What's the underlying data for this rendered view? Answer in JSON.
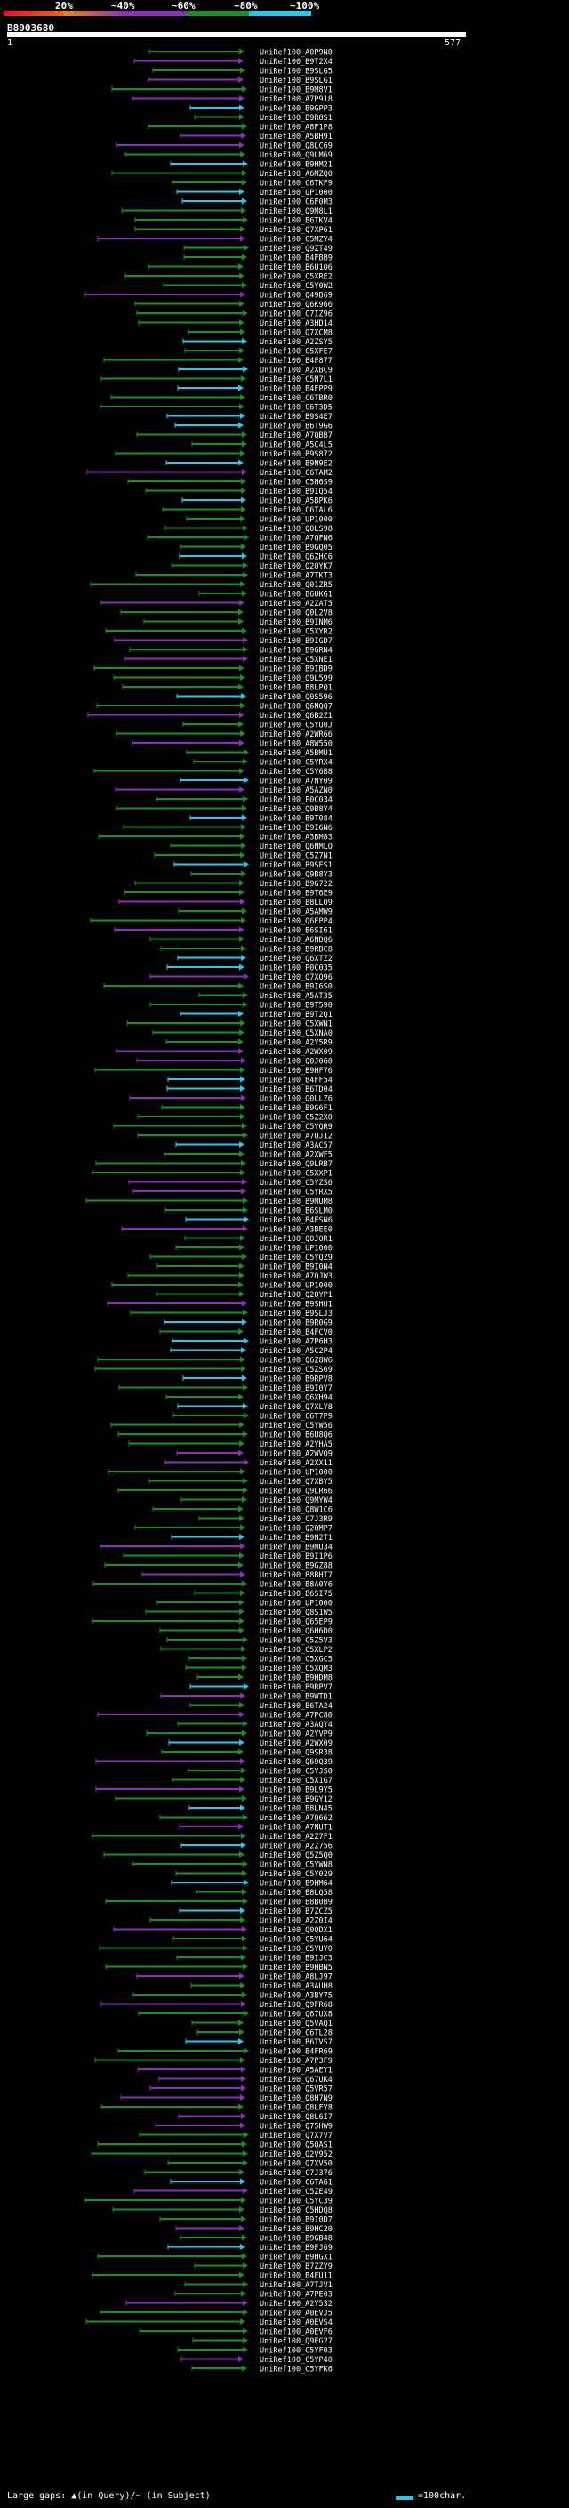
{
  "legend": {
    "percent_labels": [
      "20%",
      "~40%",
      "~60%",
      "~80%",
      "~100%"
    ],
    "colors": [
      "#e8102a",
      "#8b2fb8",
      "#1a8f22",
      "#27c8e8"
    ]
  },
  "query": {
    "id": "B8903680",
    "start": "1",
    "end": "577"
  },
  "hits": [
    "UniRef100_A0P9N0",
    "UniRef100_B9T2X4",
    "UniRef100_B9SLG5",
    "UniRef100_B9SLG1",
    "UniRef100_B9M8V1",
    "UniRef100_A7P918",
    "UniRef100_B9GPP3",
    "UniRef100_B9R8S1",
    "UniRef100_A8F1P8",
    "UniRef100_A5BH91",
    "UniRef100_Q8LC69",
    "UniRef100_Q9LM69",
    "UniRef100_B9HM21",
    "UniRef100_A6MZQ0",
    "UniRef100_C6TKF9",
    "UniRef100_UP1000",
    "UniRef100_C6F0M3",
    "UniRef100_Q9M8L1",
    "UniRef100_B6TKV4",
    "UniRef100_Q7XP61",
    "UniRef100_C5MZY4",
    "UniRef100_Q9ZT49",
    "UniRef100_B4FBB9",
    "UniRef100_B6U1Q6",
    "UniRef100_C5XRE2",
    "UniRef100_C5Y0W2",
    "UniRef100_Q49B69",
    "UniRef100_Q6K966",
    "UniRef100_C7IZ96",
    "UniRef100_A3HD14",
    "UniRef100_Q7XCM8",
    "UniRef100_A2ZSY5",
    "UniRef100_C5XFE7",
    "UniRef100_B4F877",
    "UniRef100_A2XBC9",
    "UniRef100_C5N7L1",
    "UniRef100_B4FPP9",
    "UniRef100_C6TBR0",
    "UniRef100_C6T3D5",
    "UniRef100_B9S4E7",
    "UniRef100_B6T9G6",
    "UniRef100_A7QBB7",
    "UniRef100_A5C4L5",
    "UniRef100_B9S872",
    "UniRef100_B9N9E2",
    "UniRef100_C6TAM2",
    "UniRef100_C5N6S9",
    "UniRef100_B9IQ54",
    "UniRef100_A5BPK6",
    "UniRef100_C6TAL6",
    "UniRef100_UP1000",
    "UniRef100_Q0LS98",
    "UniRef100_A7QFN6",
    "UniRef100_B9GQ05",
    "UniRef100_Q6ZHC6",
    "UniRef100_Q2QYK7",
    "UniRef100_A7TKT3",
    "UniRef100_Q01ZR5",
    "UniRef100_B6UKG1",
    "UniRef100_A2ZAT5",
    "UniRef100_Q0L2V8",
    "UniRef100_B9INM6",
    "UniRef100_C5XYR2",
    "UniRef100_B9IGD7",
    "UniRef100_B9GRN4",
    "UniRef100_C5XNE1",
    "UniRef100_B9IBD9",
    "UniRef100_Q9L599",
    "UniRef100_B8LPQ1",
    "UniRef100_Q0S596",
    "UniRef100_Q6NQQ7",
    "UniRef100_Q6B2Z1",
    "UniRef100_C5YU0J",
    "UniRef100_A2WR66",
    "UniRef100_A8W550",
    "UniRef100_A5BMU1",
    "UniRef100_C5YRX4",
    "UniRef100_C5Y6B8",
    "UniRef100_A7NY09",
    "UniRef100_A5AZN0",
    "UniRef100_P0C034",
    "UniRef100_Q9B8Y4",
    "UniRef100_B9T084",
    "UniRef100_B9I6N6",
    "UniRef100_A3BM83",
    "UniRef100_Q6NMLO",
    "UniRef100_C5Z7N1",
    "UniRef100_B9SES1",
    "UniRef100_Q9B8Y3",
    "UniRef100_B9G722",
    "UniRef100_B9T6E9",
    "UniRef100_B8LLO9",
    "UniRef100_A5AMW9",
    "UniRef100_Q6EPP4",
    "UniRef100_B6SI61",
    "UniRef100_A6NDQ6",
    "UniRef100_B9RBC8",
    "UniRef100_Q6XTZ2",
    "UniRef100_P0C035",
    "UniRef100_Q7XQ96",
    "UniRef100_B9I6S0",
    "UniRef100_A5AT35",
    "UniRef100_B9T590",
    "UniRef100_B9T2Q1",
    "UniRef100_C5XWN1",
    "UniRef100_C5XNA0",
    "UniRef100_A2Y5R9",
    "UniRef100_A2WX09",
    "UniRef100_Q0J0G0",
    "UniRef100_B9HF76",
    "UniRef100_B4FF54",
    "UniRef100_B6TD04",
    "UniRef100_Q0LLZ6",
    "UniRef100_B9G6F1",
    "UniRef100_C5Z2X0",
    "UniRef100_C5YQR9",
    "UniRef100_A7QJ12",
    "UniRef100_A3AC57",
    "UniRef100_A2XWF5",
    "UniRef100_Q9LRB7",
    "UniRef100_C5XXP1",
    "UniRef100_C5YZS6",
    "UniRef100_C5YRX5",
    "UniRef100_B9MUM8",
    "UniRef100_B6SLM0",
    "UniRef100_B4FSN6",
    "UniRef100_A3BEE0",
    "UniRef100_Q0J0R1",
    "UniRef100_UP1000",
    "UniRef100_C5YQZ9",
    "UniRef100_B9I0N4",
    "UniRef100_A7QJW3",
    "UniRef100_UP1000",
    "UniRef100_Q2QYP1",
    "UniRef100_B9SHU1",
    "UniRef100_B9SLJ3",
    "UniRef100_B9R0G9",
    "UniRef100_B4FCV0",
    "UniRef100_A7P6H3",
    "UniRef100_A5C2P4",
    "UniRef100_Q6Z8W6",
    "UniRef100_C5ZS69",
    "UniRef100_B9RPV8",
    "UniRef100_B9I0Y7",
    "UniRef100_Q6XH94",
    "UniRef100_Q7XLY8",
    "UniRef100_C6T7P9",
    "UniRef100_C5YW56",
    "UniRef100_B6U8Q6",
    "UniRef100_A2YHA5",
    "UniRef100_A2WVQ9",
    "UniRef100_A2XX11",
    "UniRef100_UP1000",
    "UniRef100_Q7XBY5",
    "UniRef100_Q9LR66",
    "UniRef100_Q9MYW4",
    "UniRef100_Q8W1C6",
    "UniRef100_C7J3R9",
    "UniRef100_Q2QMP7",
    "UniRef100_B9N2T1",
    "UniRef100_B9MU34",
    "UniRef100_B9I1P6",
    "UniRef100_B9GZ88",
    "UniRef100_B8BHT7",
    "UniRef100_B8A0Y6",
    "UniRef100_B6SI75",
    "UniRef100_UP1000",
    "UniRef100_Q8S1W5",
    "UniRef100_Q65EP9",
    "UniRef100_Q6H6D0",
    "UniRef100_C5Z5V3",
    "UniRef100_C5XLP2",
    "UniRef100_C5XGC5",
    "UniRef100_C5XQM3",
    "UniRef100_B9HDM8",
    "UniRef100_B9RPV7",
    "UniRef100_B9WTD1",
    "UniRef100_B6TA24",
    "UniRef100_A7PC80",
    "UniRef100_A3AQY4",
    "UniRef100_A2YVP9",
    "UniRef100_A2WX09",
    "UniRef100_Q9SR38",
    "UniRef100_Q69Q39",
    "UniRef100_C5YJS0",
    "UniRef100_C5X1G7",
    "UniRef100_B9L9Y5",
    "UniRef100_B9GY12",
    "UniRef100_B8LN45",
    "UniRef100_A7Q662",
    "UniRef100_A7NUT1",
    "UniRef100_A2Z7F1",
    "UniRef100_A2Z756",
    "UniRef100_Q5Z5Q0",
    "UniRef100_C5YWN8",
    "UniRef100_C5Y029",
    "UniRef100_B9HM64",
    "UniRef100_B8LQ58",
    "UniRef100_B8B0B9",
    "UniRef100_B7ZCZ5",
    "UniRef100_A2Z0I4",
    "UniRef100_Q0QDX1",
    "UniRef100_C5YU64",
    "UniRef100_C5YUY0",
    "UniRef100_B9IJC3",
    "UniRef100_B9HBN5",
    "UniRef100_A8LJ97",
    "UniRef100_A3AUH8",
    "UniRef100_A3BY75",
    "UniRef100_Q9FR68",
    "UniRef100_Q67UX8",
    "UniRef100_Q5VAQ1",
    "UniRef100_C6TL28",
    "UniRef100_B6TVS7",
    "UniRef100_B4FR69",
    "UniRef100_A7P3F9",
    "UniRef100_A5AEY1",
    "UniRef100_Q67UK4",
    "UniRef100_Q5VR57",
    "UniRef100_Q8H7N9",
    "UniRef100_Q8LFY8",
    "UniRef100_Q8L6I7",
    "UniRef100_Q75HW9",
    "UniRef100_Q7X7V7",
    "UniRef100_Q5QAS1",
    "UniRef100_Q2V952",
    "UniRef100_Q7XV50",
    "UniRef100_C7J376",
    "UniRef100_C6TAG1",
    "UniRef100_C5ZE49",
    "UniRef100_C5YC39",
    "UniRef100_C5HDQ8",
    "UniRef100_B9I0D7",
    "UniRef100_B9HC20",
    "UniRef100_B9GB48",
    "UniRef100_B9FJ69",
    "UniRef100_B9HGX1",
    "UniRef100_B7ZZY9",
    "UniRef100_B4FU11",
    "UniRef100_A7TJV1",
    "UniRef100_A7PE03",
    "UniRef100_A2Y532",
    "UniRef100_A0EVJ5",
    "UniRef100_A0EVS4",
    "UniRef100_A0EVF6",
    "UniRef100_Q9FG27",
    "UniRef100_C5YF03",
    "UniRef100_C5YP40",
    "UniRef100_C5YFK6"
  ],
  "footer": {
    "gap_text": "Large gaps: ▲(in Query)/~ (in Subject)",
    "scale_text": "=100char."
  }
}
